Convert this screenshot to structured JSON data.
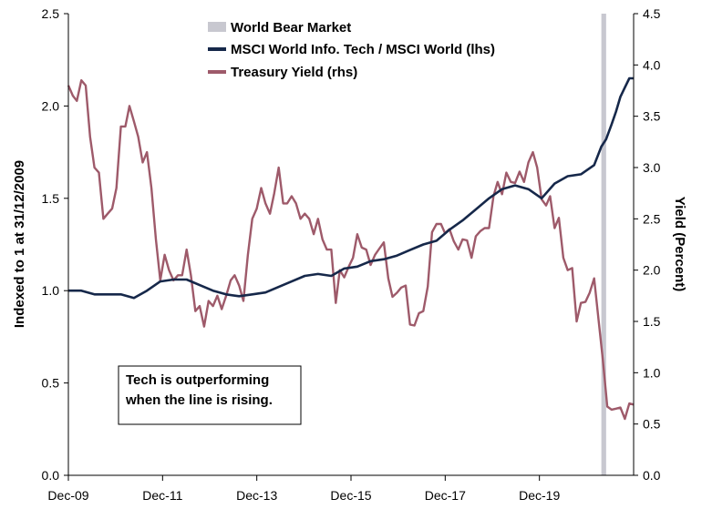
{
  "chart_data": {
    "type": "line",
    "xlabel": "",
    "ylabel": "Indexed to 1 at 31/12/2009",
    "y2label": "Yield (Percent)",
    "x_ticks": [
      "Dec-09",
      "Dec-11",
      "Dec-13",
      "Dec-15",
      "Dec-17",
      "Dec-19"
    ],
    "xlim": [
      "2009-12-31",
      "2020-09-30"
    ],
    "ylim": [
      0,
      2.5
    ],
    "y_ticks": [
      "0.0",
      "0.5",
      "1.0",
      "1.5",
      "2.0",
      "2.5"
    ],
    "y2lim": [
      0,
      4.5
    ],
    "y2_ticks": [
      "0.0",
      "0.5",
      "1.0",
      "1.5",
      "2.0",
      "2.5",
      "3.0",
      "3.5",
      "4.0",
      "4.5"
    ],
    "grid": false,
    "legend_position": "top-center",
    "legend": [
      {
        "label": "World Bear Market",
        "kind": "band",
        "color": "#c8c8d0"
      },
      {
        "label": "MSCI World Info. Tech / MSCI World (lhs)",
        "kind": "line",
        "color": "#16284a"
      },
      {
        "label": "Treasury Yield (rhs)",
        "kind": "line",
        "color": "#9e5a6a"
      }
    ],
    "bands": [
      {
        "name": "World Bear Market",
        "start": "2020-02-19",
        "end": "2020-03-23",
        "color": "#c8c8d0"
      }
    ],
    "annotation": [
      "Tech is outperforming",
      "when the line is rising."
    ],
    "series": [
      {
        "name": "MSCI World Info. Tech / MSCI World (lhs)",
        "axis": "left",
        "color": "#16284a",
        "x": [
          "2009-12-31",
          "2010-03-31",
          "2010-06-30",
          "2010-09-30",
          "2010-12-31",
          "2011-03-31",
          "2011-06-30",
          "2011-09-30",
          "2011-12-31",
          "2012-03-31",
          "2012-06-30",
          "2012-09-30",
          "2012-12-31",
          "2013-03-31",
          "2013-06-30",
          "2013-09-30",
          "2013-12-31",
          "2014-03-31",
          "2014-06-30",
          "2014-09-30",
          "2014-12-31",
          "2015-03-31",
          "2015-06-30",
          "2015-09-30",
          "2015-12-31",
          "2016-03-31",
          "2016-06-30",
          "2016-09-30",
          "2016-12-31",
          "2017-03-31",
          "2017-06-30",
          "2017-09-30",
          "2017-12-31",
          "2018-03-31",
          "2018-06-30",
          "2018-09-30",
          "2018-12-31",
          "2019-03-31",
          "2019-06-30",
          "2019-09-30",
          "2019-12-31",
          "2020-02-19",
          "2020-03-23",
          "2020-04-30",
          "2020-05-31",
          "2020-06-30",
          "2020-07-31",
          "2020-08-31",
          "2020-09-30"
        ],
        "values": [
          1.0,
          1.0,
          0.98,
          0.98,
          0.98,
          0.96,
          1.0,
          1.05,
          1.06,
          1.06,
          1.03,
          1.0,
          0.98,
          0.97,
          0.98,
          0.99,
          1.02,
          1.05,
          1.08,
          1.09,
          1.08,
          1.12,
          1.13,
          1.16,
          1.17,
          1.19,
          1.22,
          1.25,
          1.27,
          1.33,
          1.38,
          1.44,
          1.5,
          1.55,
          1.57,
          1.55,
          1.5,
          1.58,
          1.62,
          1.63,
          1.68,
          1.78,
          1.82,
          1.9,
          1.97,
          2.05,
          2.1,
          2.15,
          2.15
        ]
      },
      {
        "name": "Treasury Yield (rhs)",
        "axis": "right",
        "color": "#9e5a6a",
        "x": [
          "2009-12-31",
          "2010-01-31",
          "2010-02-28",
          "2010-03-31",
          "2010-04-30",
          "2010-05-31",
          "2010-06-30",
          "2010-07-31",
          "2010-08-31",
          "2010-09-30",
          "2010-10-31",
          "2010-11-30",
          "2010-12-31",
          "2011-01-31",
          "2011-02-28",
          "2011-03-31",
          "2011-04-30",
          "2011-05-31",
          "2011-06-30",
          "2011-07-31",
          "2011-08-31",
          "2011-09-30",
          "2011-10-31",
          "2011-11-30",
          "2011-12-31",
          "2012-01-31",
          "2012-02-29",
          "2012-03-31",
          "2012-04-30",
          "2012-05-31",
          "2012-06-30",
          "2012-07-31",
          "2012-08-31",
          "2012-09-30",
          "2012-10-31",
          "2012-11-30",
          "2012-12-31",
          "2013-01-31",
          "2013-02-28",
          "2013-03-31",
          "2013-04-30",
          "2013-05-31",
          "2013-06-30",
          "2013-07-31",
          "2013-08-31",
          "2013-09-30",
          "2013-10-31",
          "2013-11-30",
          "2013-12-31",
          "2014-01-31",
          "2014-02-28",
          "2014-03-31",
          "2014-04-30",
          "2014-05-31",
          "2014-06-30",
          "2014-07-31",
          "2014-08-31",
          "2014-09-30",
          "2014-10-31",
          "2014-11-30",
          "2014-12-31",
          "2015-01-31",
          "2015-02-28",
          "2015-03-31",
          "2015-04-30",
          "2015-05-31",
          "2015-06-30",
          "2015-07-31",
          "2015-08-31",
          "2015-09-30",
          "2015-10-31",
          "2015-11-30",
          "2015-12-31",
          "2016-01-31",
          "2016-02-29",
          "2016-03-31",
          "2016-04-30",
          "2016-05-31",
          "2016-06-30",
          "2016-07-31",
          "2016-08-31",
          "2016-09-30",
          "2016-10-31",
          "2016-11-30",
          "2016-12-31",
          "2017-01-31",
          "2017-02-28",
          "2017-03-31",
          "2017-04-30",
          "2017-05-31",
          "2017-06-30",
          "2017-07-31",
          "2017-08-31",
          "2017-09-30",
          "2017-10-31",
          "2017-11-30",
          "2017-12-31",
          "2018-01-31",
          "2018-02-28",
          "2018-03-31",
          "2018-04-30",
          "2018-05-31",
          "2018-06-30",
          "2018-07-31",
          "2018-08-31",
          "2018-09-30",
          "2018-10-31",
          "2018-11-30",
          "2018-12-31",
          "2019-01-31",
          "2019-02-28",
          "2019-03-31",
          "2019-04-30",
          "2019-05-31",
          "2019-06-30",
          "2019-07-31",
          "2019-08-31",
          "2019-09-30",
          "2019-10-31",
          "2019-11-30",
          "2019-12-31",
          "2020-01-31",
          "2020-02-29",
          "2020-03-31",
          "2020-04-30",
          "2020-05-31",
          "2020-06-30",
          "2020-07-31",
          "2020-08-31",
          "2020-09-30"
        ],
        "values": [
          3.8,
          3.7,
          3.65,
          3.85,
          3.8,
          3.3,
          3.0,
          2.95,
          2.5,
          2.55,
          2.6,
          2.8,
          3.4,
          3.4,
          3.6,
          3.45,
          3.3,
          3.05,
          3.15,
          2.8,
          2.3,
          1.9,
          2.15,
          2.0,
          1.9,
          1.95,
          1.95,
          2.2,
          1.95,
          1.6,
          1.65,
          1.45,
          1.7,
          1.65,
          1.75,
          1.62,
          1.75,
          1.9,
          1.95,
          1.85,
          1.7,
          2.15,
          2.5,
          2.6,
          2.8,
          2.65,
          2.55,
          2.75,
          3.0,
          2.65,
          2.65,
          2.72,
          2.65,
          2.5,
          2.55,
          2.5,
          2.35,
          2.5,
          2.3,
          2.2,
          2.2,
          1.68,
          2.0,
          1.93,
          2.03,
          2.12,
          2.35,
          2.22,
          2.2,
          2.05,
          2.15,
          2.21,
          2.27,
          1.92,
          1.74,
          1.78,
          1.83,
          1.85,
          1.47,
          1.46,
          1.58,
          1.6,
          1.84,
          2.37,
          2.45,
          2.45,
          2.36,
          2.4,
          2.28,
          2.2,
          2.3,
          2.29,
          2.12,
          2.33,
          2.38,
          2.41,
          2.41,
          2.72,
          2.86,
          2.74,
          2.95,
          2.86,
          2.85,
          2.96,
          2.86,
          3.05,
          3.15,
          3.0,
          2.69,
          2.63,
          2.72,
          2.41,
          2.51,
          2.12,
          2.0,
          2.02,
          1.5,
          1.68,
          1.69,
          1.78,
          1.92,
          1.51,
          1.13,
          0.67,
          0.64,
          0.65,
          0.66,
          0.55,
          0.7,
          0.69
        ]
      }
    ]
  }
}
